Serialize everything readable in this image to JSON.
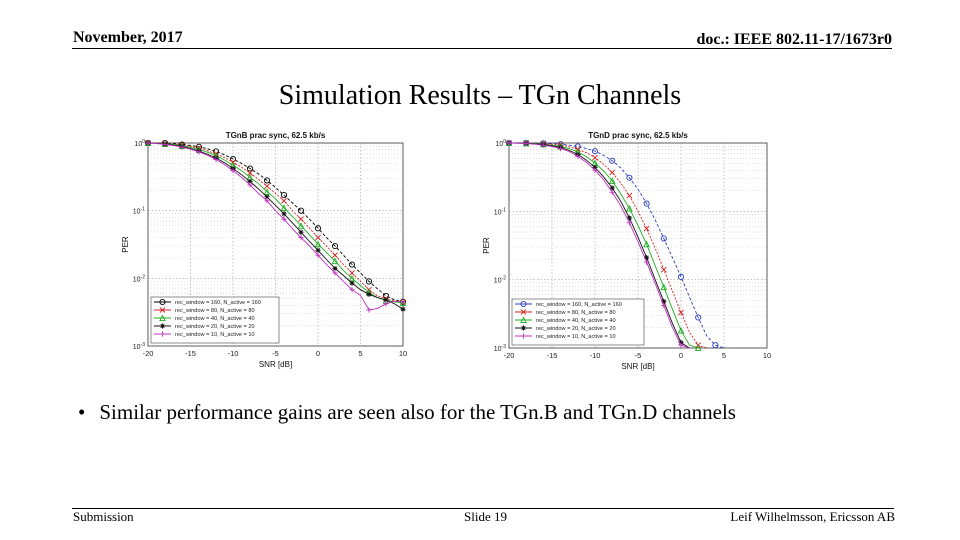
{
  "header": {
    "date": "November, 2017",
    "doc": "doc.: IEEE 802.11-17/1673r0"
  },
  "slide_title": "Simulation Results – TGn Channels",
  "bullet": "Similar performance gains are seen also for the TGn.B and TGn.D channels",
  "footer": {
    "left": "Submission",
    "center": "Slide 19",
    "right": "Leif Wilhelmsson, Ericsson AB"
  },
  "chart_data": [
    {
      "type": "line",
      "title": "TGnB prac sync, 62.5 kb/s",
      "xlabel": "SNR [dB]",
      "ylabel": "PER",
      "xlim": [
        -20,
        10
      ],
      "ylog": true,
      "ylim": [
        0.001,
        1
      ],
      "xticks": [
        "-20",
        "-15",
        "-10",
        "-5",
        "0",
        "5",
        "10"
      ],
      "yticks": [
        "10^0",
        "10^-1",
        "10^-2",
        "10^-3"
      ],
      "grid": true,
      "legend": "bottom-left",
      "series": [
        {
          "name": "rec_window = 160, N_active = 160",
          "color": "#000000",
          "marker": "circle",
          "x": [
            -20,
            -19,
            -18,
            -17,
            -16,
            -15,
            -14,
            -13,
            -12,
            -11,
            -10,
            -9,
            -8,
            -7,
            -6,
            -5,
            -4,
            -3,
            -2,
            -1,
            0,
            1,
            2,
            3,
            4,
            5,
            6,
            7,
            8,
            9,
            10
          ],
          "y": [
            1,
            1,
            1,
            0.98,
            0.95,
            0.92,
            0.88,
            0.82,
            0.75,
            0.67,
            0.58,
            0.5,
            0.42,
            0.35,
            0.28,
            0.22,
            0.17,
            0.13,
            0.1,
            0.075,
            0.055,
            0.04,
            0.03,
            0.022,
            0.016,
            0.012,
            0.009,
            0.007,
            0.0055,
            0.0048,
            0.0045
          ]
        },
        {
          "name": "rec_window = 80, N_active = 80",
          "color": "#d62020",
          "marker": "x",
          "x": [
            -20,
            -19,
            -18,
            -17,
            -16,
            -15,
            -14,
            -13,
            -12,
            -11,
            -10,
            -9,
            -8,
            -7,
            -6,
            -5,
            -4,
            -3,
            -2,
            -1,
            0,
            1,
            2,
            3,
            4,
            5,
            6,
            7,
            8,
            9,
            10
          ],
          "y": [
            1,
            1,
            0.98,
            0.96,
            0.93,
            0.89,
            0.84,
            0.77,
            0.69,
            0.61,
            0.52,
            0.44,
            0.36,
            0.29,
            0.23,
            0.18,
            0.14,
            0.1,
            0.075,
            0.055,
            0.04,
            0.03,
            0.022,
            0.016,
            0.012,
            0.009,
            0.0068,
            0.0055,
            0.005,
            0.0046,
            0.0044
          ]
        },
        {
          "name": "rec_window = 40, N_active = 40",
          "color": "#22b022",
          "marker": "triangle",
          "x": [
            -20,
            -19,
            -18,
            -17,
            -16,
            -15,
            -14,
            -13,
            -12,
            -11,
            -10,
            -9,
            -8,
            -7,
            -6,
            -5,
            -4,
            -3,
            -2,
            -1,
            0,
            1,
            2,
            3,
            4,
            5,
            6,
            7,
            8,
            9,
            10
          ],
          "y": [
            1,
            0.99,
            0.97,
            0.95,
            0.91,
            0.86,
            0.8,
            0.73,
            0.65,
            0.56,
            0.47,
            0.39,
            0.31,
            0.25,
            0.19,
            0.15,
            0.11,
            0.082,
            0.06,
            0.044,
            0.032,
            0.024,
            0.018,
            0.013,
            0.01,
            0.0078,
            0.0062,
            0.0052,
            0.0047,
            0.0045,
            0.0043
          ]
        },
        {
          "name": "rec_window = 20, N_active = 20",
          "color": "#111111",
          "marker": "star",
          "x": [
            -20,
            -19,
            -18,
            -17,
            -16,
            -15,
            -14,
            -13,
            -12,
            -11,
            -10,
            -9,
            -8,
            -7,
            -6,
            -5,
            -4,
            -3,
            -2,
            -1,
            0,
            1,
            2,
            3,
            4,
            5,
            6,
            7,
            8,
            9,
            10
          ],
          "y": [
            1,
            0.99,
            0.96,
            0.93,
            0.89,
            0.83,
            0.76,
            0.68,
            0.6,
            0.51,
            0.42,
            0.34,
            0.27,
            0.21,
            0.16,
            0.12,
            0.09,
            0.066,
            0.048,
            0.035,
            0.026,
            0.019,
            0.014,
            0.011,
            0.0085,
            0.0068,
            0.0058,
            0.0052,
            0.0048,
            0.0042,
            0.0035
          ]
        },
        {
          "name": "rec_window = 10, N_active = 10",
          "color": "#c030c0",
          "marker": "plus",
          "x": [
            -20,
            -19,
            -18,
            -17,
            -16,
            -15,
            -14,
            -13,
            -12,
            -11,
            -10,
            -9,
            -8,
            -7,
            -6,
            -5,
            -4,
            -3,
            -2,
            -1,
            0,
            1,
            2,
            3,
            4,
            5,
            6,
            7,
            8,
            9,
            10
          ],
          "y": [
            1,
            0.98,
            0.95,
            0.92,
            0.87,
            0.81,
            0.74,
            0.66,
            0.57,
            0.48,
            0.39,
            0.31,
            0.24,
            0.18,
            0.14,
            0.1,
            0.075,
            0.054,
            0.04,
            0.03,
            0.022,
            0.016,
            0.012,
            0.009,
            0.0068,
            0.0056,
            0.0034,
            0.0036,
            0.0042,
            0.0046,
            0.0045
          ]
        }
      ]
    },
    {
      "type": "line",
      "title": "TGnD prac sync, 62.5 kb/s",
      "xlabel": "SNR [dB]",
      "ylabel": "PER",
      "xlim": [
        -20,
        10
      ],
      "ylog": true,
      "ylim": [
        0.001,
        1
      ],
      "xticks": [
        "-20",
        "-15",
        "-10",
        "-5",
        "0",
        "5",
        "10"
      ],
      "yticks": [
        "10^0",
        "10^-1",
        "10^-2",
        "10^-3"
      ],
      "grid": true,
      "legend": "bottom-left",
      "series": [
        {
          "name": "rec_window = 160, N_active = 160",
          "color": "#2a3cc0",
          "marker": "circle",
          "x": [
            -20,
            -19,
            -18,
            -17,
            -16,
            -15,
            -14,
            -13,
            -12,
            -11,
            -10,
            -9,
            -8,
            -7,
            -6,
            -5,
            -4,
            -3,
            -2,
            -1,
            0,
            1,
            2,
            3,
            4,
            5
          ],
          "y": [
            1,
            1,
            1,
            1,
            0.99,
            0.98,
            0.96,
            0.93,
            0.89,
            0.83,
            0.76,
            0.66,
            0.55,
            0.43,
            0.31,
            0.21,
            0.13,
            0.075,
            0.04,
            0.021,
            0.011,
            0.0055,
            0.0028,
            0.0015,
            0.0011,
            0.001
          ]
        },
        {
          "name": "rec_window = 80, N_active = 80",
          "color": "#d62020",
          "marker": "x",
          "x": [
            -20,
            -19,
            -18,
            -17,
            -16,
            -15,
            -14,
            -13,
            -12,
            -11,
            -10,
            -9,
            -8,
            -7,
            -6,
            -5,
            -4,
            -3,
            -2,
            -1,
            0,
            1,
            2,
            3
          ],
          "y": [
            1,
            1,
            1,
            0.99,
            0.98,
            0.96,
            0.93,
            0.88,
            0.81,
            0.72,
            0.61,
            0.49,
            0.37,
            0.26,
            0.17,
            0.1,
            0.056,
            0.029,
            0.014,
            0.0068,
            0.0033,
            0.0017,
            0.0011,
            0.001
          ]
        },
        {
          "name": "rec_window = 40, N_active = 40",
          "color": "#22b022",
          "marker": "triangle",
          "x": [
            -20,
            -19,
            -18,
            -17,
            -16,
            -15,
            -14,
            -13,
            -12,
            -11,
            -10,
            -9,
            -8,
            -7,
            -6,
            -5,
            -4,
            -3,
            -2,
            -1,
            0,
            1,
            2
          ],
          "y": [
            1,
            1,
            0.99,
            0.98,
            0.96,
            0.93,
            0.89,
            0.83,
            0.74,
            0.63,
            0.51,
            0.39,
            0.28,
            0.18,
            0.11,
            0.062,
            0.033,
            0.016,
            0.0078,
            0.0037,
            0.0018,
            0.0011,
            0.001
          ]
        },
        {
          "name": "rec_window = 20, N_active = 20",
          "color": "#111111",
          "marker": "star",
          "x": [
            -20,
            -19,
            -18,
            -17,
            -16,
            -15,
            -14,
            -13,
            -12,
            -11,
            -10,
            -9,
            -8,
            -7,
            -6,
            -5,
            -4,
            -3,
            -2,
            -1,
            0,
            1
          ],
          "y": [
            1,
            1,
            0.99,
            0.97,
            0.95,
            0.91,
            0.86,
            0.78,
            0.68,
            0.56,
            0.44,
            0.32,
            0.22,
            0.14,
            0.08,
            0.042,
            0.021,
            0.01,
            0.0048,
            0.0023,
            0.0012,
            0.001
          ]
        },
        {
          "name": "rec_window = 10, N_active = 10",
          "color": "#c030c0",
          "marker": "plus",
          "x": [
            -20,
            -19,
            -18,
            -17,
            -16,
            -15,
            -14,
            -13,
            -12,
            -11,
            -10,
            -9,
            -8,
            -7,
            -6,
            -5,
            -4,
            -3,
            -2,
            -1,
            0,
            1
          ],
          "y": [
            1,
            0.99,
            0.98,
            0.96,
            0.93,
            0.89,
            0.83,
            0.75,
            0.64,
            0.52,
            0.4,
            0.29,
            0.19,
            0.12,
            0.068,
            0.036,
            0.018,
            0.0088,
            0.0042,
            0.002,
            0.0011,
            0.001
          ]
        }
      ]
    }
  ]
}
